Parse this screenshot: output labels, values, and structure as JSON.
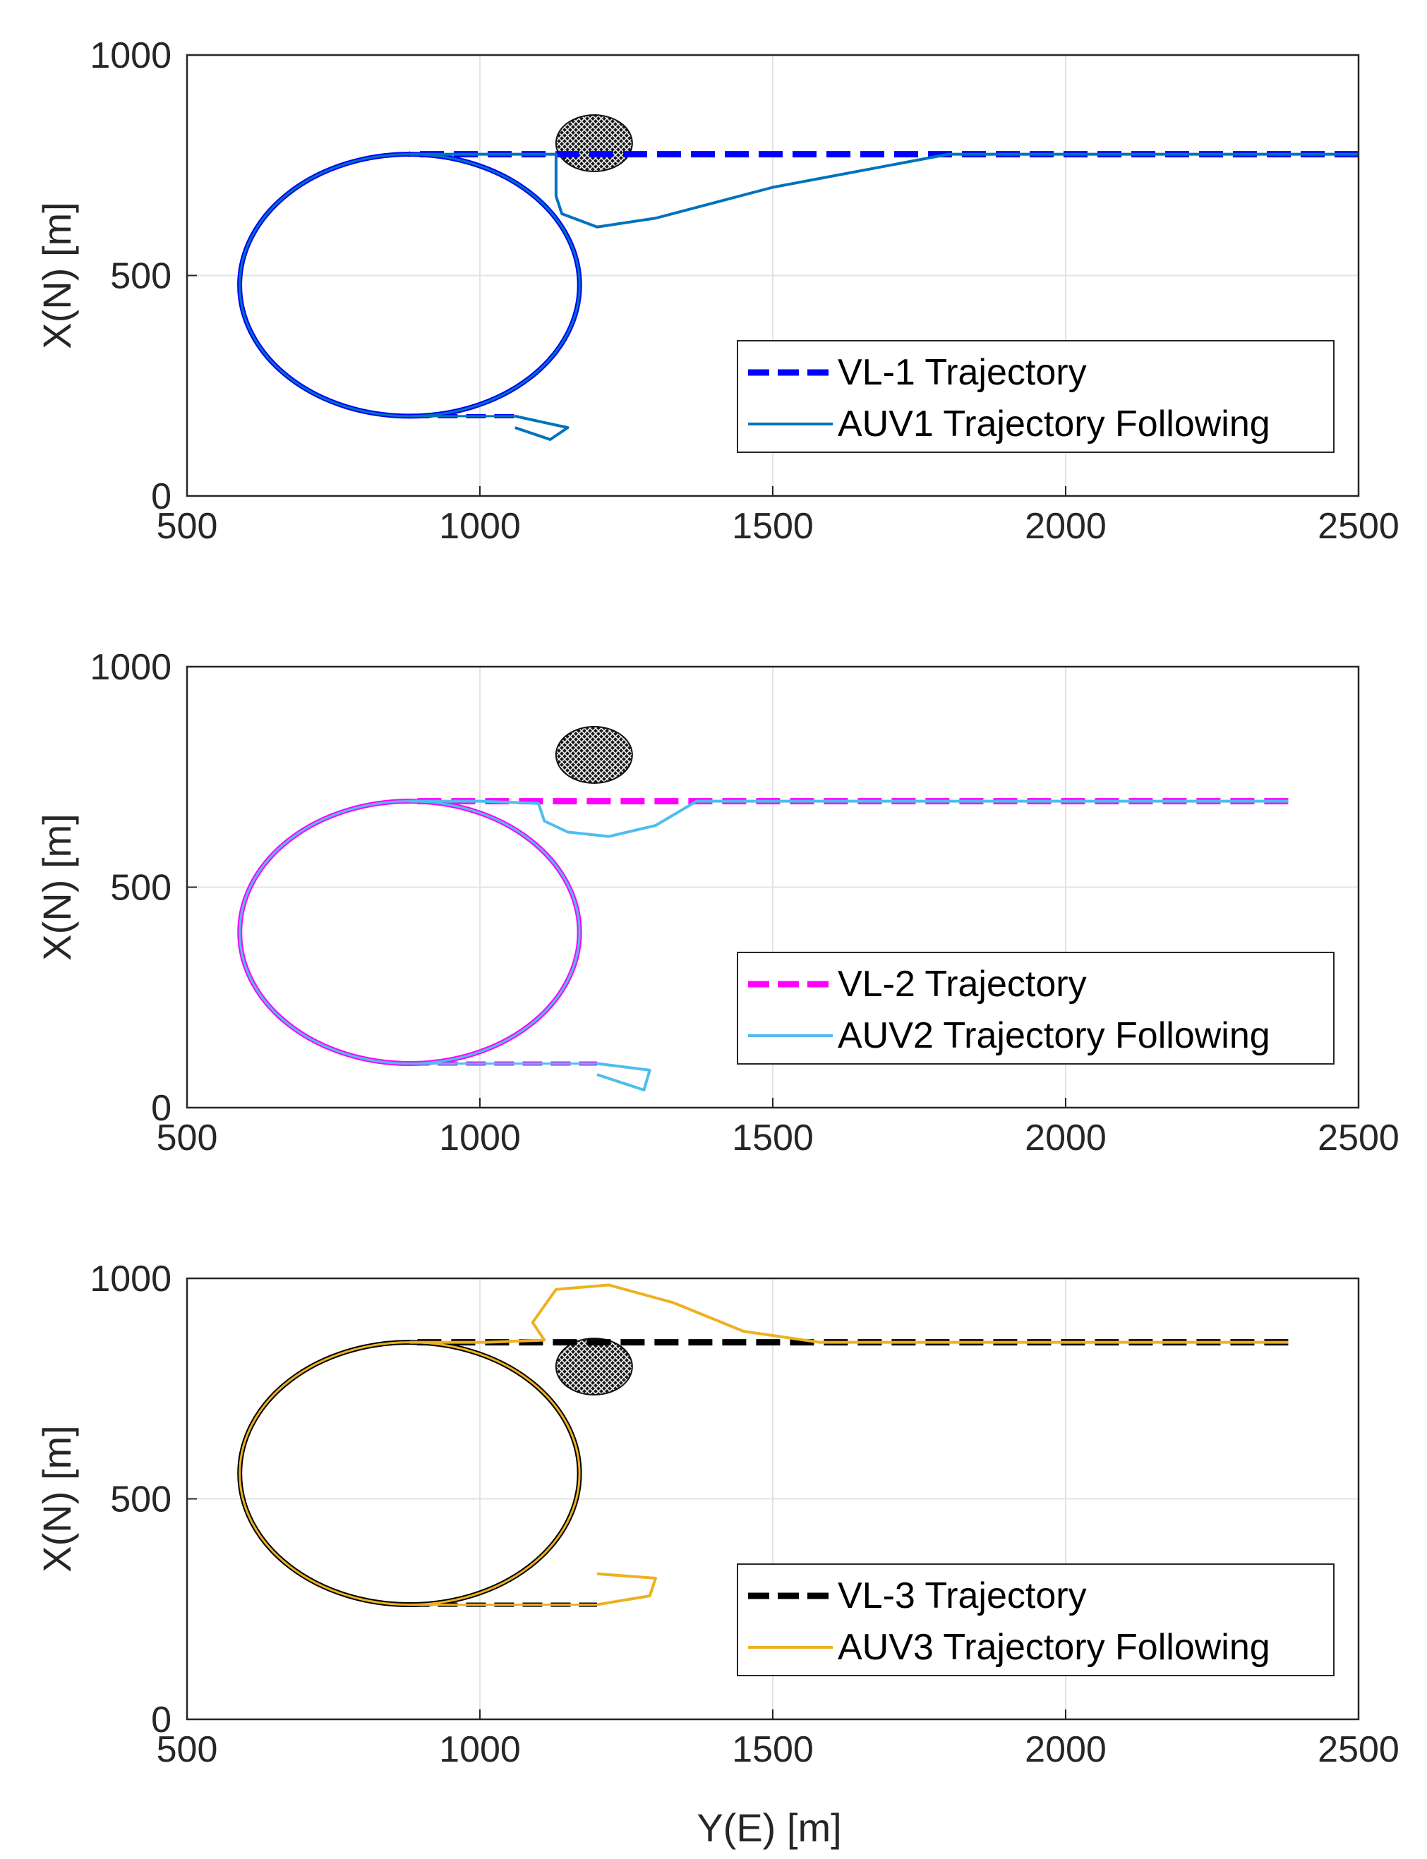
{
  "figure": {
    "xlabel_shared": "Y(E) [m]"
  },
  "chart_data": [
    {
      "type": "line",
      "xlabel": "",
      "ylabel": "X(N) [m]",
      "xlim": [
        500,
        2500
      ],
      "ylim": [
        0,
        1000
      ],
      "xticks": [
        "500",
        "1000",
        "1500",
        "2000",
        "2500"
      ],
      "yticks": [
        "0",
        "500",
        "1000"
      ],
      "grid": true,
      "legend": "bottom-right",
      "obstacle": {
        "cx": 1195,
        "cy": 800
      },
      "series": [
        {
          "name": "VL-1 Trajectory",
          "color": "#0000ff",
          "dash": true,
          "x": [
            2500,
            1900,
            1500,
            1200,
            1000,
            880
          ],
          "y": [
            775,
            775,
            775,
            775,
            775,
            775
          ]
        },
        {
          "name": "AUV1 Trajectory Following",
          "color": "#0072bd",
          "dash": false,
          "x": [
            2500,
            1800,
            1500,
            1300,
            1200,
            1140,
            1130,
            1130,
            1000,
            880
          ],
          "y": [
            775,
            775,
            700,
            630,
            610,
            640,
            680,
            775,
            775,
            775
          ]
        }
      ],
      "loop": {
        "cx": 880,
        "cy": 478,
        "rx": 290,
        "ry": 297
      },
      "tail": {
        "x_end": 1060,
        "y": 181
      },
      "arrow": {
        "x": [
          1060,
          1150,
          1120,
          1060
        ],
        "y": [
          181,
          155,
          128,
          155
        ]
      }
    },
    {
      "type": "line",
      "xlabel": "",
      "ylabel": "X(N) [m]",
      "xlim": [
        500,
        2500
      ],
      "ylim": [
        0,
        1000
      ],
      "xticks": [
        "500",
        "1000",
        "1500",
        "2000",
        "2500"
      ],
      "yticks": [
        "0",
        "500",
        "1000"
      ],
      "grid": true,
      "legend": "bottom-right",
      "obstacle": {
        "cx": 1195,
        "cy": 800
      },
      "series": [
        {
          "name": "VL-2 Trajectory",
          "color": "#ff00ff",
          "dash": true,
          "x": [
            2380,
            1900,
            1500,
            1200,
            1000,
            880
          ],
          "y": [
            695,
            695,
            695,
            695,
            695,
            695
          ]
        },
        {
          "name": "AUV2 Trajectory Following",
          "color": "#4dbeee",
          "dash": false,
          "x": [
            2380,
            1370,
            1300,
            1220,
            1150,
            1110,
            1100,
            1000,
            880
          ],
          "y": [
            695,
            695,
            640,
            615,
            625,
            650,
            690,
            695,
            695
          ]
        }
      ],
      "loop": {
        "cx": 880,
        "cy": 398,
        "rx": 290,
        "ry": 297
      },
      "tail": {
        "x_end": 1200,
        "y": 100
      },
      "arrow": {
        "x": [
          1200,
          1290,
          1280,
          1200
        ],
        "y": [
          100,
          85,
          40,
          75
        ]
      }
    },
    {
      "type": "line",
      "xlabel": "Y(E) [m]",
      "ylabel": "X(N) [m]",
      "xlim": [
        500,
        2500
      ],
      "ylim": [
        0,
        1000
      ],
      "xticks": [
        "500",
        "1000",
        "1500",
        "2000",
        "2500"
      ],
      "yticks": [
        "0",
        "500",
        "1000"
      ],
      "grid": true,
      "legend": "bottom-right",
      "obstacle": {
        "cx": 1195,
        "cy": 800
      },
      "series": [
        {
          "name": "VL-3 Trajectory",
          "color": "#000000",
          "dash": true,
          "x": [
            2380,
            1900,
            1500,
            1200,
            1000,
            880
          ],
          "y": [
            855,
            855,
            855,
            855,
            855,
            855
          ]
        },
        {
          "name": "AUV3 Trajectory Following",
          "color": "#edb120",
          "dash": false,
          "x": [
            2380,
            1580,
            1450,
            1330,
            1220,
            1130,
            1090,
            1110,
            1010,
            880
          ],
          "y": [
            855,
            855,
            880,
            945,
            985,
            975,
            900,
            860,
            855,
            855
          ]
        }
      ],
      "loop": {
        "cx": 880,
        "cy": 558,
        "rx": 290,
        "ry": 297
      },
      "tail": {
        "x_end": 1200,
        "y": 260
      },
      "arrow": {
        "x": [
          1200,
          1290,
          1300,
          1200
        ],
        "y": [
          260,
          280,
          320,
          330
        ]
      }
    }
  ]
}
